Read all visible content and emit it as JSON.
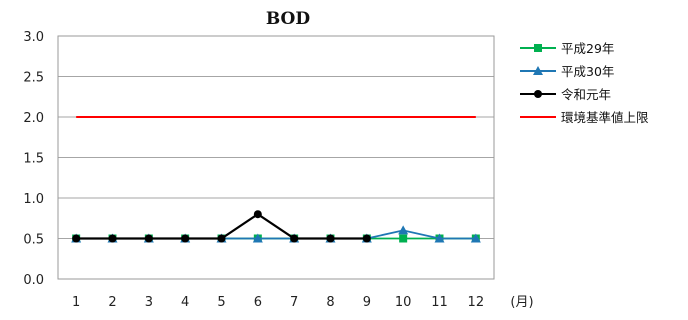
{
  "chart_data": {
    "type": "line",
    "title": "BOD",
    "xlabel": "(月)",
    "ylabel": "",
    "categories": [
      "1",
      "2",
      "3",
      "4",
      "5",
      "6",
      "7",
      "8",
      "9",
      "10",
      "11",
      "12"
    ],
    "ylim": [
      0,
      3
    ],
    "yticks": [
      "0.0",
      "0.5",
      "1.0",
      "1.5",
      "2.0",
      "2.5",
      "3.0"
    ],
    "grid": "horizontal",
    "legend": "right",
    "series": [
      {
        "name": "平成29年",
        "color": "#00b050",
        "marker": "square",
        "values": [
          0.5,
          0.5,
          0.5,
          0.5,
          0.5,
          0.5,
          0.5,
          0.5,
          0.5,
          0.5,
          0.5,
          0.5
        ]
      },
      {
        "name": "平成30年",
        "color": "#1f77b4",
        "marker": "triangle",
        "values": [
          0.5,
          0.5,
          0.5,
          0.5,
          0.5,
          0.5,
          0.5,
          0.5,
          0.5,
          0.6,
          0.5,
          0.5
        ]
      },
      {
        "name": "令和元年",
        "color": "#000000",
        "marker": "circle",
        "values": [
          0.5,
          0.5,
          0.5,
          0.5,
          0.5,
          0.8,
          0.5,
          0.5,
          0.5,
          null,
          null,
          null
        ]
      },
      {
        "name": "環境基準値上限",
        "color": "#ff0000",
        "marker": "none",
        "values": [
          2.0,
          2.0,
          2.0,
          2.0,
          2.0,
          2.0,
          2.0,
          2.0,
          2.0,
          2.0,
          2.0,
          2.0
        ]
      }
    ]
  }
}
